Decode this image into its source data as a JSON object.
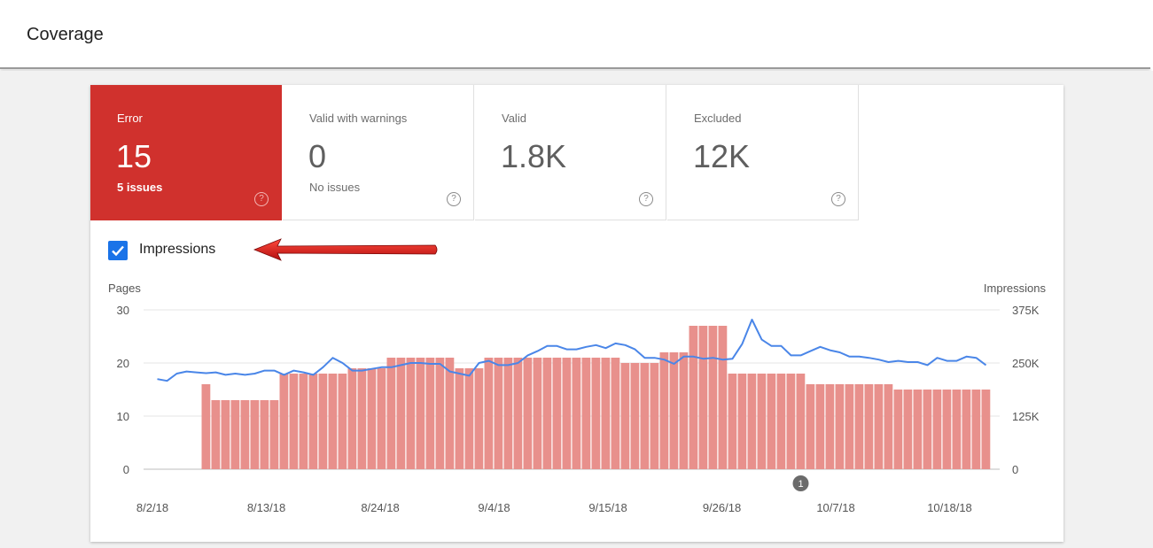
{
  "page": {
    "title": "Coverage"
  },
  "tiles": [
    {
      "label": "Error",
      "value": "15",
      "sub": "5 issues",
      "help": "?"
    },
    {
      "label": "Valid with warnings",
      "value": "0",
      "sub": "No issues",
      "help": "?"
    },
    {
      "label": "Valid",
      "value": "1.8K",
      "sub": "",
      "help": "?"
    },
    {
      "label": "Excluded",
      "value": "12K",
      "sub": "",
      "help": "?"
    }
  ],
  "impressions": {
    "label": "Impressions",
    "checked": true
  },
  "colors": {
    "error": "#d0312d",
    "bar": "#e8908c",
    "line": "#4a86e8",
    "checkbox": "#1a73e8",
    "arrow": "#e01b1b"
  },
  "chart_data": {
    "type": "bar",
    "ylabel": "Pages",
    "y2label": "Impressions",
    "ylim": [
      0,
      30
    ],
    "y2lim": [
      0,
      375000
    ],
    "yticks": [
      "0",
      "10",
      "20",
      "30"
    ],
    "y2ticks": [
      "0",
      "125K",
      "250K",
      "375K"
    ],
    "xticks": [
      "8/2/18",
      "8/13/18",
      "8/24/18",
      "9/4/18",
      "9/15/18",
      "9/26/18",
      "10/7/18",
      "10/18/18"
    ],
    "annotation": "1",
    "annotation_index": 66,
    "series": [
      {
        "name": "Pages",
        "values": [
          0,
          0,
          0,
          0,
          0,
          16,
          13,
          13,
          13,
          13,
          13,
          13,
          13,
          18,
          18,
          18,
          18,
          18,
          18,
          18,
          19,
          19,
          19,
          19,
          21,
          21,
          21,
          21,
          21,
          21,
          21,
          19,
          19,
          19,
          21,
          21,
          21,
          21,
          21,
          21,
          21,
          21,
          21,
          21,
          21,
          21,
          21,
          21,
          20,
          20,
          20,
          20,
          22,
          22,
          22,
          27,
          27,
          27,
          27,
          18,
          18,
          18,
          18,
          18,
          18,
          18,
          18,
          16,
          16,
          16,
          16,
          16,
          16,
          16,
          16,
          16,
          15,
          15,
          15,
          15,
          15,
          15,
          15,
          15,
          15,
          15
        ]
      },
      {
        "name": "Impressions",
        "values": [
          212000,
          208000,
          225000,
          230000,
          228000,
          226000,
          228000,
          222000,
          225000,
          222000,
          225000,
          232000,
          232000,
          222000,
          232000,
          228000,
          222000,
          240000,
          262000,
          250000,
          232000,
          232000,
          236000,
          240000,
          240000,
          245000,
          250000,
          250000,
          248000,
          248000,
          230000,
          225000,
          220000,
          250000,
          255000,
          245000,
          245000,
          250000,
          268000,
          278000,
          290000,
          290000,
          282000,
          282000,
          288000,
          292000,
          285000,
          296000,
          292000,
          282000,
          262000,
          262000,
          258000,
          248000,
          265000,
          265000,
          260000,
          262000,
          258000,
          260000,
          295000,
          352000,
          305000,
          290000,
          290000,
          268000,
          268000,
          278000,
          288000,
          280000,
          275000,
          265000,
          265000,
          262000,
          258000,
          252000,
          255000,
          252000,
          252000,
          245000,
          262000,
          255000,
          255000,
          265000,
          262000,
          245000
        ]
      }
    ]
  }
}
